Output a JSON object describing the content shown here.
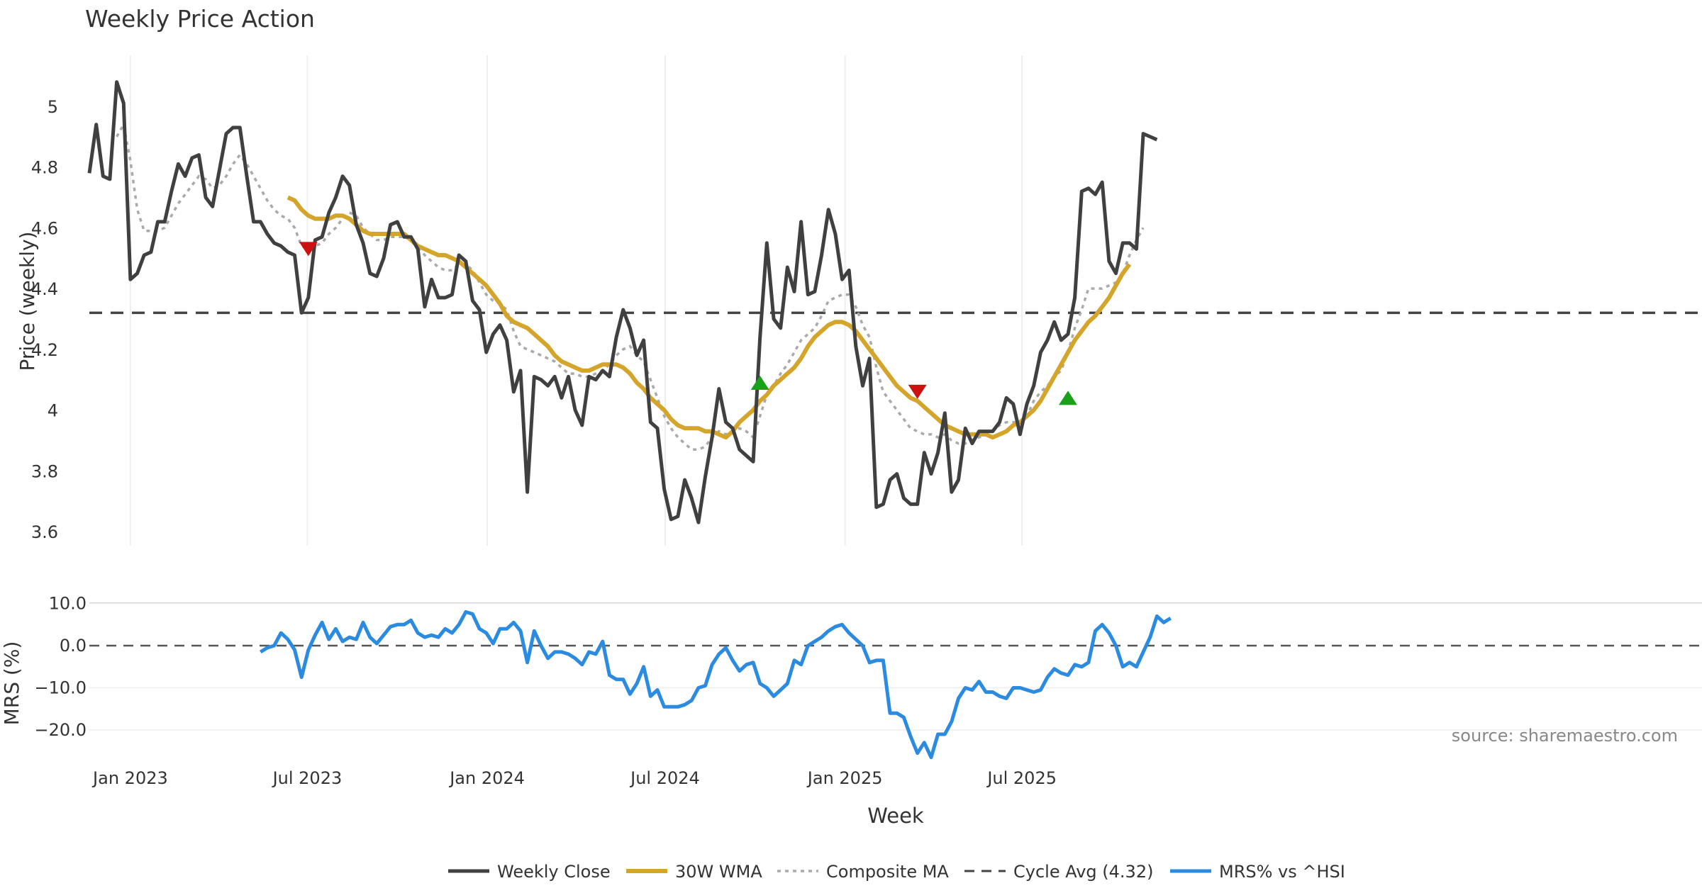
{
  "chart_data": {
    "type": "line",
    "title": "Weekly Price Action",
    "source": "source: sharemaestro.com",
    "xlabel": "Week",
    "x_ticks": [
      "Jan 2023",
      "Jul 2023",
      "Jan 2024",
      "Jul 2024",
      "Jan 2025",
      "Jul 2025"
    ],
    "x_range": [
      "2022-11-20",
      "2025-11-16"
    ],
    "price_panel": {
      "ylabel": "Price (weekly)",
      "ylim": [
        3.57,
        5.22
      ],
      "yticks": [
        "3.6",
        "3.8",
        "4",
        "4.2",
        "4.4",
        "4.6",
        "4.8",
        "5"
      ],
      "cycle_avg": 4.32,
      "weekly_close": [
        4.78,
        4.94,
        4.77,
        4.76,
        5.08,
        5.01,
        4.43,
        4.45,
        4.51,
        4.52,
        4.62,
        4.62,
        4.72,
        4.81,
        4.77,
        4.83,
        4.84,
        4.7,
        4.67,
        4.79,
        4.91,
        4.93,
        4.93,
        4.77,
        4.62,
        4.62,
        4.58,
        4.55,
        4.54,
        4.52,
        4.51,
        4.32,
        4.37,
        4.56,
        4.57,
        4.65,
        4.7,
        4.77,
        4.74,
        4.61,
        4.55,
        4.45,
        4.44,
        4.5,
        4.61,
        4.62,
        4.57,
        4.57,
        4.53,
        4.34,
        4.43,
        4.37,
        4.37,
        4.38,
        4.51,
        4.49,
        4.36,
        4.33,
        4.19,
        4.25,
        4.28,
        4.23,
        4.06,
        4.13,
        3.73,
        4.11,
        4.1,
        4.08,
        4.11,
        4.04,
        4.11,
        4.0,
        3.95,
        4.11,
        4.1,
        4.13,
        4.11,
        4.24,
        4.33,
        4.27,
        4.18,
        4.23,
        3.96,
        3.94,
        3.74,
        3.64,
        3.65,
        3.77,
        3.71,
        3.63,
        3.78,
        3.91,
        4.07,
        3.96,
        3.94,
        3.87,
        3.85,
        3.83,
        4.24,
        4.55,
        4.3,
        4.27,
        4.47,
        4.39,
        4.62,
        4.38,
        4.39,
        4.51,
        4.66,
        4.58,
        4.43,
        4.46,
        4.21,
        4.08,
        4.17,
        3.68,
        3.69,
        3.77,
        3.79,
        3.71,
        3.69,
        3.69,
        3.86,
        3.79,
        3.86,
        3.99,
        3.73,
        3.77,
        3.94,
        3.89,
        3.93,
        3.93,
        3.93,
        3.96,
        4.04,
        4.02,
        3.92,
        4.02,
        4.08,
        4.19,
        4.23,
        4.29,
        4.23,
        4.25,
        4.37,
        4.72,
        4.73,
        4.71,
        4.75,
        4.49,
        4.45,
        4.55,
        4.55,
        4.53,
        4.91,
        4.9,
        4.89
      ],
      "wma_30": [
        null,
        null,
        null,
        null,
        null,
        null,
        null,
        null,
        null,
        null,
        null,
        null,
        null,
        null,
        null,
        null,
        null,
        null,
        null,
        null,
        null,
        null,
        null,
        null,
        null,
        null,
        null,
        null,
        null,
        4.7,
        4.69,
        4.66,
        4.64,
        4.63,
        4.63,
        4.63,
        4.64,
        4.64,
        4.63,
        4.61,
        4.59,
        4.58,
        4.58,
        4.58,
        4.58,
        4.58,
        4.58,
        4.56,
        4.54,
        4.53,
        4.52,
        4.51,
        4.51,
        4.5,
        4.49,
        4.47,
        4.45,
        4.43,
        4.41,
        4.38,
        4.35,
        4.31,
        4.29,
        4.28,
        4.27,
        4.25,
        4.23,
        4.21,
        4.18,
        4.16,
        4.15,
        4.14,
        4.13,
        4.13,
        4.14,
        4.15,
        4.15,
        4.15,
        4.14,
        4.12,
        4.09,
        4.07,
        4.04,
        4.02,
        4.0,
        3.97,
        3.95,
        3.94,
        3.94,
        3.94,
        3.93,
        3.93,
        3.92,
        3.91,
        3.93,
        3.96,
        3.98,
        4.0,
        4.03,
        4.05,
        4.08,
        4.1,
        4.12,
        4.14,
        4.17,
        4.21,
        4.24,
        4.26,
        4.28,
        4.29,
        4.29,
        4.28,
        4.26,
        4.23,
        4.2,
        4.17,
        4.14,
        4.11,
        4.08,
        4.06,
        4.04,
        4.03,
        4.01,
        3.99,
        3.97,
        3.95,
        3.94,
        3.93,
        3.92,
        3.92,
        3.92,
        3.92,
        3.91,
        3.92,
        3.93,
        3.95,
        3.96,
        3.98,
        4.0,
        4.03,
        4.07,
        4.11,
        4.15,
        4.19,
        4.23,
        4.26,
        4.29,
        4.31,
        4.34,
        4.37,
        4.41,
        4.45,
        4.48
      ],
      "composite_ma": [
        null,
        null,
        null,
        null,
        4.9,
        4.94,
        4.82,
        4.66,
        4.59,
        4.59,
        4.59,
        4.6,
        4.64,
        4.68,
        4.71,
        4.74,
        4.77,
        4.76,
        4.73,
        4.74,
        4.77,
        4.81,
        4.84,
        4.81,
        4.77,
        4.73,
        4.69,
        4.66,
        4.64,
        4.63,
        4.6,
        4.54,
        4.53,
        4.54,
        4.55,
        4.58,
        4.6,
        4.63,
        4.65,
        4.64,
        4.6,
        4.58,
        4.56,
        4.56,
        4.57,
        4.57,
        4.57,
        4.56,
        4.54,
        4.51,
        4.49,
        4.47,
        4.46,
        4.46,
        4.48,
        4.48,
        4.46,
        4.42,
        4.38,
        4.36,
        4.35,
        4.33,
        4.26,
        4.21,
        4.2,
        4.19,
        4.18,
        4.17,
        4.16,
        4.14,
        4.12,
        4.12,
        4.11,
        4.11,
        4.12,
        4.13,
        4.15,
        4.18,
        4.2,
        4.21,
        4.18,
        4.16,
        4.1,
        4.04,
        3.98,
        3.94,
        3.91,
        3.89,
        3.87,
        3.87,
        3.88,
        3.91,
        3.93,
        3.92,
        3.93,
        3.94,
        3.93,
        3.91,
        3.98,
        4.05,
        4.08,
        4.12,
        4.15,
        4.19,
        4.23,
        4.25,
        4.27,
        4.31,
        4.36,
        4.37,
        4.38,
        4.38,
        4.34,
        4.28,
        4.24,
        4.14,
        4.06,
        4.03,
        4.0,
        3.97,
        3.94,
        3.93,
        3.92,
        3.92,
        3.91,
        3.92,
        3.9,
        3.89,
        3.89,
        3.9,
        3.91,
        3.92,
        3.93,
        3.95,
        3.96,
        3.96,
        3.96,
        3.98,
        4.03,
        4.06,
        4.08,
        4.11,
        4.13,
        4.19,
        4.27,
        4.33,
        4.4,
        4.4,
        4.4,
        4.41,
        4.42,
        4.45,
        4.51,
        4.56,
        4.6
      ],
      "markers": [
        {
          "type": "down",
          "week": 32,
          "price": 4.53
        },
        {
          "type": "up",
          "week": 98,
          "price": 4.09
        },
        {
          "type": "down",
          "week": 121,
          "price": 4.06
        },
        {
          "type": "up",
          "week": 143,
          "price": 4.04
        }
      ]
    },
    "mrs_panel": {
      "ylabel": "MRS (%)",
      "ylim": [
        -29,
        11
      ],
      "yticks": [
        "10.0",
        "0.0",
        "−10.0",
        "−20.0"
      ],
      "reference": 0,
      "start_week": 25,
      "values": [
        -1.5,
        -0.5,
        0.0,
        3.0,
        1.5,
        -1.0,
        -7.5,
        -1.0,
        2.5,
        5.5,
        1.5,
        4.0,
        1.0,
        2.0,
        1.5,
        5.5,
        2.0,
        0.5,
        2.5,
        4.5,
        5.0,
        5.0,
        6.0,
        3.0,
        2.0,
        2.5,
        2.0,
        4.0,
        3.0,
        5.0,
        8.0,
        7.5,
        4.0,
        3.0,
        0.5,
        4.0,
        4.0,
        5.5,
        3.5,
        -4.0,
        3.5,
        0.0,
        -3.0,
        -1.5,
        -1.5,
        -2.0,
        -3.0,
        -4.5,
        -1.5,
        -2.0,
        1.0,
        -7.0,
        -8.0,
        -8.0,
        -11.5,
        -9.0,
        -5.0,
        -12.0,
        -10.5,
        -14.5,
        -14.5,
        -14.5,
        -14.0,
        -13.0,
        -10.0,
        -9.5,
        -4.5,
        -2.0,
        -0.5,
        -3.5,
        -6.0,
        -4.5,
        -4.0,
        -9.0,
        -10.0,
        -12.0,
        -10.5,
        -9.0,
        -3.5,
        -4.5,
        0.0,
        1.0,
        2.0,
        3.5,
        4.5,
        5.0,
        3.0,
        1.5,
        0.0,
        -4.0,
        -3.5,
        -3.5,
        -16.0,
        -16.0,
        -17.0,
        -21.5,
        -25.5,
        -23.0,
        -26.5,
        -21.0,
        -21.0,
        -18.0,
        -12.5,
        -10.0,
        -10.5,
        -8.5,
        -11.0,
        -11.0,
        -12.0,
        -12.5,
        -10.0,
        -10.0,
        -10.5,
        -11.0,
        -10.5,
        -7.5,
        -5.5,
        -6.5,
        -7.0,
        -4.5,
        -5.0,
        -4.0,
        3.5,
        5.0,
        3.0,
        0.0,
        -5.0,
        -4.0,
        -5.0,
        -1.5,
        2.0,
        7.0,
        5.5,
        6.5
      ]
    },
    "legend": [
      "Weekly Close",
      "30W WMA",
      "Composite MA",
      "Cycle Avg (4.32)",
      "MRS% vs ^HSI"
    ],
    "colors": {
      "weekly_close": "#404040",
      "wma_30": "#d4a52a",
      "composite_ma": "#aaaaaa",
      "cycle_avg": "#444444",
      "mrs": "#2b8be0",
      "up_marker": "#1aa11a",
      "down_marker": "#cc1111",
      "grid": "#eeeeee",
      "text": "#333333",
      "source": "#888888"
    }
  }
}
